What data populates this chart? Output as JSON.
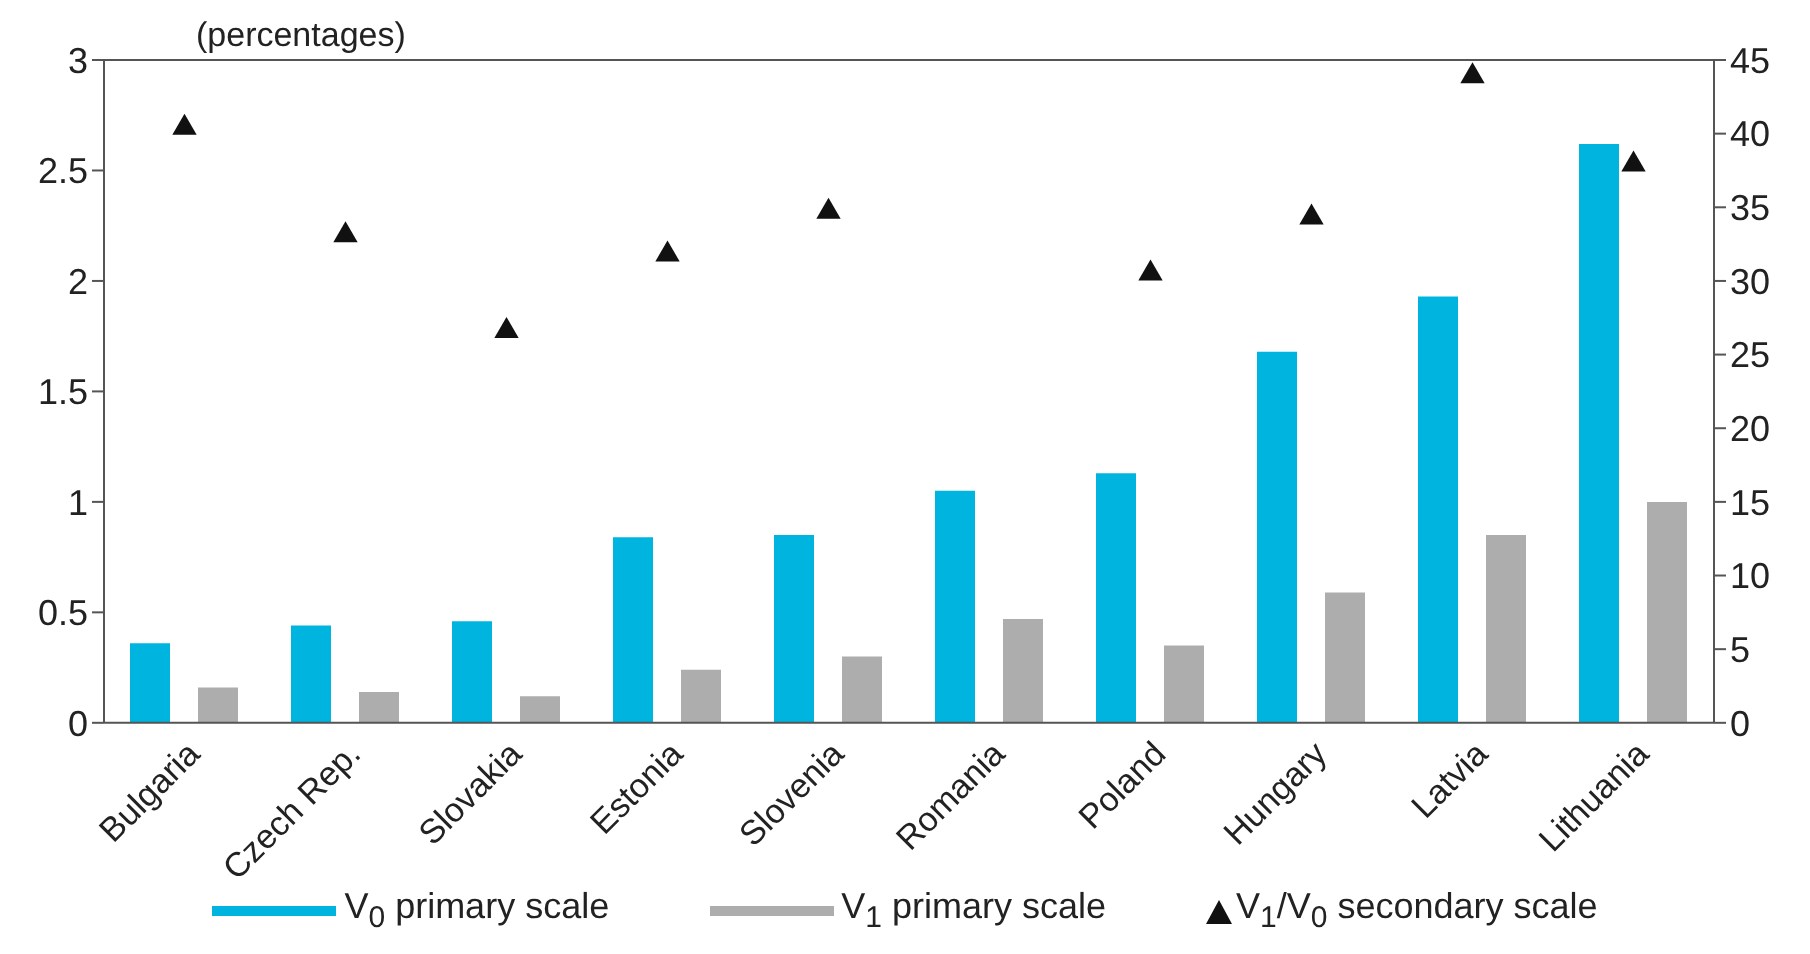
{
  "chart_data": {
    "type": "bar",
    "subtitle": "(percentages)",
    "categories": [
      "Bulgaria",
      "Czech Rep.",
      "Slovakia",
      "Estonia",
      "Slovenia",
      "Romania",
      "Poland",
      "Hungary",
      "Latvia",
      "Lithuania"
    ],
    "series": [
      {
        "name": "V$_{0}$ primary scale",
        "color": "#00b4e0",
        "values": [
          0.36,
          0.44,
          0.46,
          0.84,
          0.85,
          1.05,
          1.13,
          1.68,
          1.93,
          2.62
        ]
      },
      {
        "name": "V$_{1}$ primary scale",
        "color": "#adadad",
        "values": [
          0.16,
          0.14,
          0.12,
          0.24,
          0.3,
          0.47,
          0.35,
          0.59,
          0.85,
          1.0
        ]
      },
      {
        "name": "V$_{1}$/V$_{0}$ secondary scale",
        "type": "scatter",
        "axis": "y2",
        "marker": "triangle",
        "color": "#111111",
        "values": [
          40.4,
          33.1,
          26.6,
          31.8,
          34.7,
          null,
          30.5,
          34.3,
          43.9,
          37.9
        ]
      }
    ],
    "ylim": [
      0,
      3
    ],
    "yticks": [
      0,
      0.5,
      1,
      1.5,
      2,
      2.5,
      3
    ],
    "y2lim": [
      0,
      45
    ],
    "y2ticks": [
      0,
      5,
      10,
      15,
      20,
      25,
      30,
      35,
      40,
      45
    ],
    "legend": "bottom"
  }
}
